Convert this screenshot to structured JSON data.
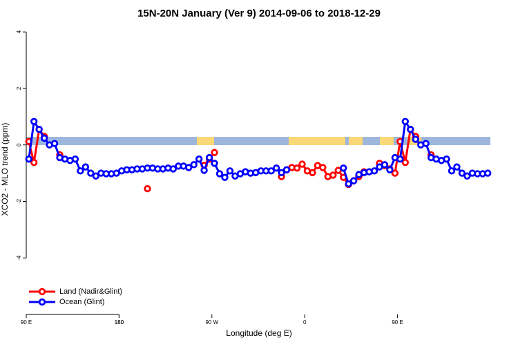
{
  "chart_data": {
    "type": "line",
    "title": "15N-20N January (Ver 9)   2014-09-06 to 2018-12-29",
    "x_label": "Longitude (deg E)",
    "y_label": "XCO2 - MLO trend (ppm)",
    "x": [
      92.5,
      97.5,
      102.5,
      107.5,
      112.5,
      117.5,
      122.5,
      127.5,
      132.5,
      137.5,
      142.5,
      147.5,
      152.5,
      157.5,
      162.5,
      167.5,
      172.5,
      177.5,
      182.5,
      187.5,
      192.5,
      197.5,
      202.5,
      207.5,
      212.5,
      217.5,
      222.5,
      227.5,
      232.5,
      237.5,
      242.5,
      247.5,
      252.5,
      257.5,
      262.5,
      267.5,
      272.5,
      277.5,
      282.5,
      287.5,
      292.5,
      297.5,
      302.5,
      307.5,
      312.5,
      317.5,
      322.5,
      327.5,
      332.5,
      337.5,
      342.5,
      347.5,
      352.5,
      357.5,
      362.5,
      367.5,
      372.5,
      377.5,
      382.5,
      387.5,
      392.5,
      397.5,
      402.5,
      407.5,
      412.5,
      417.5,
      422.5,
      427.5,
      432.5,
      437.5,
      442.5,
      447.5,
      452.5,
      457.5,
      462.5,
      467.5,
      472.5,
      477.5,
      482.5,
      487.5,
      492.5,
      497.5,
      502.5,
      507.5,
      512.5,
      517.5,
      522.5,
      527.5,
      532.5,
      537.5
    ],
    "series": [
      {
        "name": "Land (Nadir&Glint)",
        "color": "#ff0000",
        "values": [
          0.12,
          -0.62,
          0.55,
          0.3,
          null,
          null,
          -0.35,
          null,
          null,
          null,
          null,
          null,
          null,
          null,
          null,
          null,
          null,
          null,
          null,
          null,
          null,
          null,
          null,
          -1.55,
          null,
          null,
          null,
          null,
          null,
          null,
          null,
          null,
          null,
          null,
          -0.72,
          -0.5,
          -0.27,
          null,
          null,
          null,
          null,
          null,
          null,
          null,
          null,
          null,
          null,
          null,
          null,
          -1.12,
          -0.88,
          -0.8,
          -0.82,
          -0.68,
          -0.92,
          -0.98,
          -0.73,
          -0.8,
          -1.12,
          -1.07,
          -0.9,
          -1.15,
          -1.4,
          -1.27,
          -1.12,
          -0.95,
          null,
          null,
          -0.65,
          -0.73,
          -0.85,
          -1.0,
          0.12,
          -0.62,
          0.55,
          0.3,
          null,
          null,
          -0.35,
          null,
          null,
          null,
          null,
          null,
          null,
          null,
          null,
          null,
          null,
          null
        ]
      },
      {
        "name": "Ocean (Glint)",
        "color": "#0000ff",
        "values": [
          -0.5,
          0.83,
          0.55,
          0.24,
          0.0,
          0.05,
          -0.45,
          -0.5,
          -0.55,
          -0.5,
          -0.92,
          -0.78,
          -1.0,
          -1.1,
          -1.0,
          -1.02,
          -1.02,
          -1.0,
          -0.92,
          -0.88,
          -0.88,
          -0.85,
          -0.85,
          -0.82,
          -0.82,
          -0.85,
          -0.85,
          -0.82,
          -0.85,
          -0.75,
          -0.75,
          -0.8,
          -0.7,
          -0.5,
          -0.9,
          -0.45,
          -0.65,
          -1.02,
          -1.15,
          -0.92,
          -1.1,
          -1.02,
          -0.95,
          -1.0,
          -0.98,
          -0.92,
          -0.92,
          -0.92,
          -0.82,
          -0.98,
          -0.88,
          null,
          null,
          null,
          null,
          null,
          null,
          null,
          null,
          null,
          null,
          -0.82,
          -1.38,
          -1.27,
          -1.05,
          -0.98,
          -0.95,
          -0.92,
          -0.78,
          -0.7,
          -0.88,
          -0.45,
          -0.5,
          0.83,
          0.55,
          0.2,
          0.0,
          0.05,
          -0.45,
          -0.5,
          -0.55,
          -0.5,
          -0.92,
          -0.78,
          -1.0,
          -1.1,
          -1.0,
          -1.02,
          -1.02,
          -1.0
        ]
      }
    ],
    "xlim": [
      90,
      540
    ],
    "xticks": [
      {
        "value": 90,
        "label": "90 E"
      },
      180,
      {
        "value": 270,
        "label": "90 W"
      },
      {
        "value": 360,
        "label": "0"
      },
      {
        "value": 450,
        "label": "90 E"
      },
      180.0001
    ],
    "ylim": [
      -6,
      4.2
    ],
    "yticks": [
      -4,
      -2,
      0,
      2,
      4
    ],
    "legend": "bottom-left"
  }
}
